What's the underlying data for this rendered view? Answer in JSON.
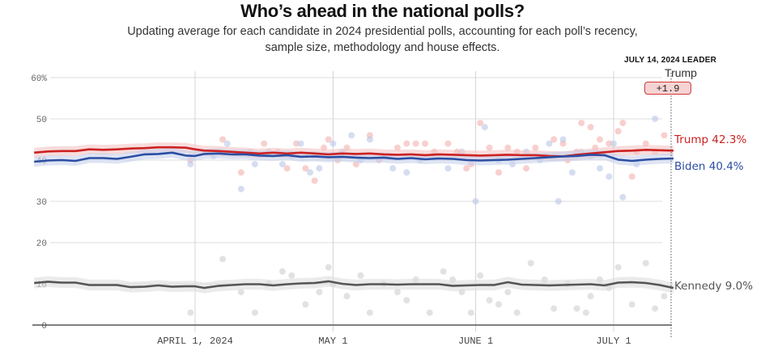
{
  "header": {
    "title": "Who’s ahead in the national polls?",
    "subtitle_line1": "Updating average for each candidate in 2024 presidential polls, accounting for each poll’s recency,",
    "subtitle_line2": "sample size, methodology and house effects."
  },
  "leader": {
    "date_label": "JULY 14, 2024 LEADER",
    "name": "Trump",
    "margin": "+1.9"
  },
  "end_labels": {
    "trump": "Trump 42.3%",
    "biden": "Biden 40.4%",
    "kennedy": "Kennedy 9.0%"
  },
  "colors": {
    "trump": "#cc2222",
    "biden": "#2b4ea3",
    "kennedy": "#555555",
    "trump_dot": "#f2b1ae",
    "biden_dot": "#b9c6e6",
    "kennedy_dot": "#cfcfcf"
  },
  "chart_data": {
    "type": "line",
    "title": "Who’s ahead in the national polls?",
    "subtitle": "Updating average for each candidate in 2024 presidential polls, accounting for each poll’s recency, sample size, methodology and house effects.",
    "xlabel": "",
    "ylabel": "",
    "x_units": "days since April 1, 2024",
    "xlim": [
      -35,
      104
    ],
    "ylim": [
      0,
      60
    ],
    "yticks": [
      0,
      10,
      20,
      30,
      40,
      50,
      60
    ],
    "ytick_labels": [
      "0",
      "10",
      "20",
      "30",
      "40",
      "50",
      "60%"
    ],
    "xticks": [
      0,
      30,
      61,
      91
    ],
    "xtick_labels": [
      "APRIL 1, 2024",
      "MAY 1",
      "JUNE 1",
      "JULY 1"
    ],
    "grid": true,
    "legend": "right-end labels",
    "marker_day": 104,
    "series": [
      {
        "name": "Trump",
        "final_value": 42.3,
        "band": 1.2,
        "x": [
          -35,
          -32,
          -29,
          -26,
          -23,
          -20,
          -17,
          -14,
          -11,
          -8,
          -5,
          -2,
          0,
          2,
          5,
          8,
          11,
          14,
          17,
          20,
          23,
          26,
          29,
          32,
          35,
          38,
          41,
          44,
          47,
          50,
          53,
          56,
          59,
          62,
          65,
          68,
          71,
          74,
          77,
          80,
          83,
          86,
          89,
          92,
          95,
          98,
          101,
          104
        ],
        "values": [
          41.8,
          42.1,
          42.2,
          42.2,
          42.6,
          42.5,
          42.6,
          42.8,
          42.9,
          43.1,
          43.1,
          43.0,
          42.6,
          42.3,
          42.2,
          42.0,
          41.8,
          41.6,
          41.8,
          41.6,
          41.8,
          41.6,
          41.4,
          41.6,
          41.5,
          41.6,
          41.4,
          41.3,
          41.4,
          41.2,
          41.4,
          41.3,
          41.2,
          41.1,
          41.2,
          41.3,
          41.2,
          41.2,
          41.0,
          40.9,
          41.3,
          41.6,
          41.9,
          42.2,
          42.3,
          42.5,
          42.4,
          42.3
        ]
      },
      {
        "name": "Biden",
        "final_value": 40.4,
        "band": 1.2,
        "x": [
          -35,
          -32,
          -29,
          -26,
          -23,
          -20,
          -17,
          -14,
          -11,
          -8,
          -5,
          -2,
          0,
          2,
          5,
          8,
          11,
          14,
          17,
          20,
          23,
          26,
          29,
          32,
          35,
          38,
          41,
          44,
          47,
          50,
          53,
          56,
          59,
          62,
          65,
          68,
          71,
          74,
          77,
          80,
          83,
          86,
          89,
          92,
          95,
          98,
          101,
          104
        ],
        "values": [
          39.6,
          39.9,
          40.0,
          39.8,
          40.5,
          40.5,
          40.3,
          40.8,
          41.4,
          41.5,
          41.8,
          41.1,
          41.0,
          41.5,
          41.6,
          41.4,
          41.4,
          41.1,
          41.0,
          41.2,
          40.8,
          40.9,
          40.7,
          40.8,
          40.6,
          40.5,
          40.6,
          40.3,
          40.5,
          40.2,
          40.4,
          40.3,
          40.0,
          39.9,
          40.0,
          40.1,
          40.3,
          40.5,
          40.7,
          40.9,
          41.0,
          41.3,
          41.2,
          40.1,
          39.8,
          40.1,
          40.3,
          40.4
        ]
      },
      {
        "name": "Kennedy",
        "final_value": 9.0,
        "band": 1.3,
        "x": [
          -35,
          -32,
          -29,
          -26,
          -23,
          -20,
          -17,
          -14,
          -11,
          -8,
          -5,
          -2,
          0,
          2,
          5,
          8,
          11,
          14,
          17,
          20,
          23,
          26,
          29,
          32,
          35,
          38,
          41,
          44,
          47,
          50,
          53,
          56,
          59,
          62,
          65,
          68,
          71,
          74,
          77,
          80,
          83,
          86,
          89,
          92,
          95,
          98,
          101,
          104
        ],
        "values": [
          10.2,
          10.5,
          10.3,
          10.3,
          9.7,
          9.7,
          9.7,
          9.2,
          9.3,
          9.6,
          9.3,
          9.4,
          9.4,
          9.0,
          9.5,
          9.7,
          9.9,
          9.9,
          9.6,
          9.9,
          10.1,
          10.2,
          10.6,
          10.0,
          9.7,
          9.9,
          9.9,
          9.8,
          9.9,
          9.9,
          9.9,
          9.5,
          9.6,
          9.7,
          9.7,
          10.4,
          9.8,
          9.7,
          9.6,
          9.7,
          9.8,
          9.9,
          9.6,
          10.3,
          10.4,
          10.2,
          9.7,
          9.0
        ]
      }
    ],
    "polls": {
      "Trump": [
        [
          -1,
          40
        ],
        [
          6,
          45
        ],
        [
          10,
          37
        ],
        [
          12,
          42
        ],
        [
          15,
          44
        ],
        [
          18,
          42
        ],
        [
          20,
          38
        ],
        [
          22,
          44
        ],
        [
          24,
          38
        ],
        [
          26,
          35
        ],
        [
          28,
          43
        ],
        [
          29,
          45
        ],
        [
          31,
          40
        ],
        [
          33,
          43
        ],
        [
          35,
          39
        ],
        [
          38,
          46
        ],
        [
          40,
          40
        ],
        [
          42,
          41
        ],
        [
          44,
          43
        ],
        [
          46,
          44
        ],
        [
          48,
          44
        ],
        [
          50,
          44
        ],
        [
          52,
          42
        ],
        [
          55,
          44
        ],
        [
          57,
          42
        ],
        [
          59,
          38
        ],
        [
          60,
          39
        ],
        [
          62,
          49
        ],
        [
          64,
          43
        ],
        [
          66,
          37
        ],
        [
          68,
          43
        ],
        [
          70,
          42
        ],
        [
          72,
          38
        ],
        [
          74,
          43
        ],
        [
          76,
          41
        ],
        [
          78,
          45
        ],
        [
          80,
          44
        ],
        [
          81,
          40
        ],
        [
          83,
          42
        ],
        [
          84,
          49
        ],
        [
          86,
          48
        ],
        [
          87,
          43
        ],
        [
          88,
          45
        ],
        [
          90,
          44
        ],
        [
          92,
          47
        ],
        [
          93,
          49
        ],
        [
          95,
          36
        ],
        [
          96,
          42
        ],
        [
          98,
          44
        ],
        [
          100,
          42
        ],
        [
          102,
          46
        ]
      ],
      "Biden": [
        [
          -1,
          39
        ],
        [
          4,
          41
        ],
        [
          7,
          44
        ],
        [
          10,
          33
        ],
        [
          13,
          39
        ],
        [
          16,
          42
        ],
        [
          19,
          39
        ],
        [
          21,
          41
        ],
        [
          23,
          44
        ],
        [
          25,
          37
        ],
        [
          27,
          38
        ],
        [
          30,
          44
        ],
        [
          32,
          42
        ],
        [
          34,
          46
        ],
        [
          36,
          40
        ],
        [
          38,
          45
        ],
        [
          41,
          41
        ],
        [
          43,
          38
        ],
        [
          46,
          37
        ],
        [
          49,
          40
        ],
        [
          52,
          41
        ],
        [
          55,
          38
        ],
        [
          58,
          42
        ],
        [
          61,
          30
        ],
        [
          63,
          48
        ],
        [
          66,
          40
        ],
        [
          69,
          39
        ],
        [
          72,
          42
        ],
        [
          75,
          40
        ],
        [
          77,
          44
        ],
        [
          79,
          30
        ],
        [
          80,
          45
        ],
        [
          82,
          37
        ],
        [
          84,
          42
        ],
        [
          86,
          41
        ],
        [
          88,
          38
        ],
        [
          90,
          36
        ],
        [
          91,
          44
        ],
        [
          93,
          31
        ],
        [
          96,
          39
        ],
        [
          100,
          50
        ]
      ],
      "Kennedy": [
        [
          -1,
          3
        ],
        [
          6,
          16
        ],
        [
          10,
          8
        ],
        [
          13,
          3
        ],
        [
          16,
          10
        ],
        [
          19,
          13
        ],
        [
          21,
          12
        ],
        [
          24,
          5
        ],
        [
          27,
          8
        ],
        [
          29,
          14
        ],
        [
          30,
          10
        ],
        [
          33,
          7
        ],
        [
          36,
          12
        ],
        [
          38,
          3
        ],
        [
          41,
          10
        ],
        [
          44,
          8
        ],
        [
          46,
          6
        ],
        [
          48,
          11
        ],
        [
          51,
          3
        ],
        [
          54,
          13
        ],
        [
          56,
          11
        ],
        [
          58,
          8
        ],
        [
          60,
          3
        ],
        [
          62,
          12
        ],
        [
          64,
          6
        ],
        [
          66,
          5
        ],
        [
          68,
          8
        ],
        [
          70,
          3
        ],
        [
          73,
          15
        ],
        [
          76,
          11
        ],
        [
          78,
          4
        ],
        [
          81,
          10
        ],
        [
          83,
          4
        ],
        [
          85,
          3
        ],
        [
          86,
          7
        ],
        [
          88,
          11
        ],
        [
          90,
          9
        ],
        [
          92,
          14
        ],
        [
          95,
          5
        ],
        [
          98,
          15
        ],
        [
          100,
          4
        ],
        [
          102,
          7
        ]
      ]
    }
  }
}
